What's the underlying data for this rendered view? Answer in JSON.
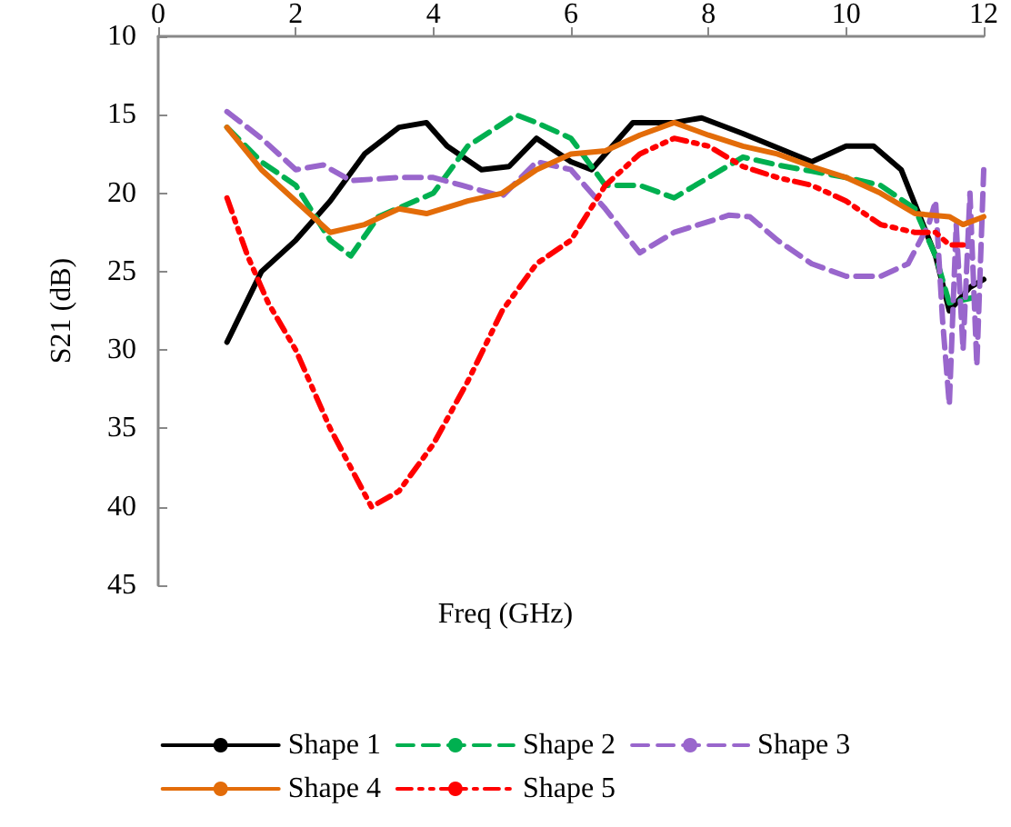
{
  "chart_data": {
    "type": "line",
    "xlabel": "Freq (GHz)",
    "ylabel": "S21 (dB)",
    "xlim": [
      0,
      12
    ],
    "xticks": [
      0,
      2,
      4,
      6,
      8,
      10,
      12
    ],
    "ylim": [
      45,
      10
    ],
    "yticks": [
      10,
      15,
      20,
      25,
      30,
      35,
      40,
      45
    ],
    "grid": false,
    "legend": "bottom",
    "marker": "none",
    "series": [
      {
        "name": "Shape 1",
        "color": "#000000",
        "line_style": "solid",
        "x": [
          1,
          1.5,
          2,
          2.5,
          3,
          3.5,
          3.9,
          4.2,
          4.7,
          5.1,
          5.5,
          6,
          6.3,
          6.9,
          7.5,
          7.9,
          8.5,
          9.5,
          10,
          10.4,
          10.8,
          11.3,
          11.5,
          11.8,
          12
        ],
        "values": [
          29.5,
          25,
          23,
          20.5,
          17.5,
          15.8,
          15.5,
          17,
          18.5,
          18.3,
          16.5,
          18,
          18.5,
          15.5,
          15.5,
          15.2,
          16.2,
          18,
          17,
          17,
          18.5,
          24,
          27.5,
          26,
          25.5
        ]
      },
      {
        "name": "Shape 2",
        "color": "#00b050",
        "line_style": "dashed",
        "x": [
          1,
          1.5,
          2,
          2.5,
          2.8,
          3.2,
          4,
          4.5,
          5.2,
          5.5,
          6,
          6.5,
          7,
          7.5,
          8,
          8.5,
          9,
          9.5,
          10,
          10.5,
          11,
          11.3,
          11.5,
          12
        ],
        "values": [
          15.8,
          18,
          19.5,
          23,
          24,
          21.5,
          20,
          17,
          15,
          15.5,
          16.5,
          19.5,
          19.5,
          20.3,
          19,
          17.7,
          18.2,
          18.6,
          19,
          19.5,
          21,
          24,
          27,
          26.5
        ]
      },
      {
        "name": "Shape 3",
        "color": "#9966cc",
        "line_style": "dashed",
        "x": [
          1,
          1.5,
          2,
          2.4,
          2.8,
          3.5,
          4,
          5,
          5.5,
          6,
          6.5,
          7,
          7.5,
          8.3,
          8.6,
          9,
          9.5,
          10,
          10.5,
          10.9,
          11.2,
          11.3,
          11.4,
          11.5,
          11.6,
          11.7,
          11.8,
          11.9,
          12
        ],
        "values": [
          14.8,
          16.5,
          18.5,
          18.2,
          19.2,
          19,
          19,
          20.2,
          18,
          18.5,
          21,
          23.8,
          22.5,
          21.4,
          21.5,
          23,
          24.5,
          25.3,
          25.3,
          24.5,
          22,
          20.5,
          28,
          33.5,
          22,
          30,
          20,
          31,
          18.5
        ]
      },
      {
        "name": "Shape 4",
        "color": "#e36c09",
        "line_style": "solid",
        "x": [
          1,
          1.5,
          2,
          2.5,
          3,
          3.5,
          3.9,
          4.5,
          5,
          5.5,
          6,
          6.5,
          7,
          7.5,
          8,
          8.5,
          9,
          9.5,
          10,
          10.5,
          11,
          11.5,
          11.7,
          12
        ],
        "values": [
          15.8,
          18.5,
          20.5,
          22.5,
          22,
          21,
          21.3,
          20.5,
          20,
          18.5,
          17.5,
          17.3,
          16.3,
          15.5,
          16.3,
          17,
          17.5,
          18.3,
          19,
          20,
          21.3,
          21.5,
          22,
          21.5
        ]
      },
      {
        "name": "Shape 5",
        "color": "#ff0000",
        "line_style": "dotted",
        "x": [
          1,
          1.3,
          1.6,
          2,
          2.5,
          2.8,
          3.1,
          3.5,
          4,
          4.5,
          5,
          5.5,
          6,
          6.5,
          7,
          7.5,
          8,
          8.5,
          9,
          9.5,
          10,
          10.5,
          11,
          11.3,
          11.5,
          11.7
        ],
        "values": [
          20.3,
          24,
          27,
          30,
          35,
          37.5,
          40,
          39,
          36,
          32,
          27.5,
          24.5,
          23,
          19.5,
          17.5,
          16.5,
          17,
          18.3,
          19,
          19.5,
          20.5,
          22,
          22.5,
          22.5,
          23.3,
          23.3
        ]
      }
    ]
  }
}
